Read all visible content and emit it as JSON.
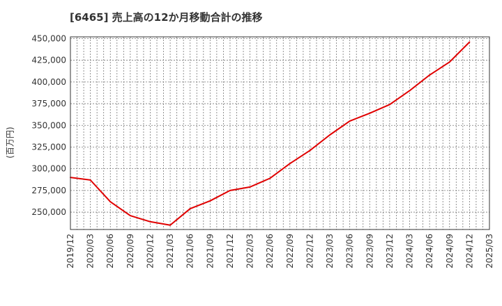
{
  "chart_data": {
    "type": "line",
    "title": "[6465]  売上高の12か月移動合計の推移",
    "ylabel": "(百万円)",
    "xlabel": "",
    "ylim": [
      230000,
      452000
    ],
    "y_ticks": [
      250000,
      275000,
      300000,
      325000,
      350000,
      375000,
      400000,
      425000,
      450000
    ],
    "y_tick_labels": [
      "250,000",
      "275,000",
      "300,000",
      "325,000",
      "350,000",
      "375,000",
      "400,000",
      "425,000",
      "450,000"
    ],
    "categories": [
      "2019/12",
      "2020/03",
      "2020/06",
      "2020/09",
      "2020/12",
      "2021/03",
      "2021/06",
      "2021/09",
      "2021/12",
      "2022/03",
      "2022/06",
      "2022/09",
      "2022/12",
      "2023/03",
      "2023/06",
      "2023/09",
      "2023/12",
      "2024/03",
      "2024/06",
      "2024/09",
      "2024/12",
      "2025/03"
    ],
    "series": [
      {
        "name": "売上高の12か月移動合計",
        "color": "#e00000",
        "values": [
          290000,
          287000,
          262000,
          246000,
          239000,
          235000,
          254000,
          263000,
          275000,
          279000,
          289000,
          306000,
          321000,
          339000,
          355000,
          364000,
          374000,
          390000,
          408000,
          423000,
          446000,
          null
        ]
      }
    ],
    "grid": true
  }
}
